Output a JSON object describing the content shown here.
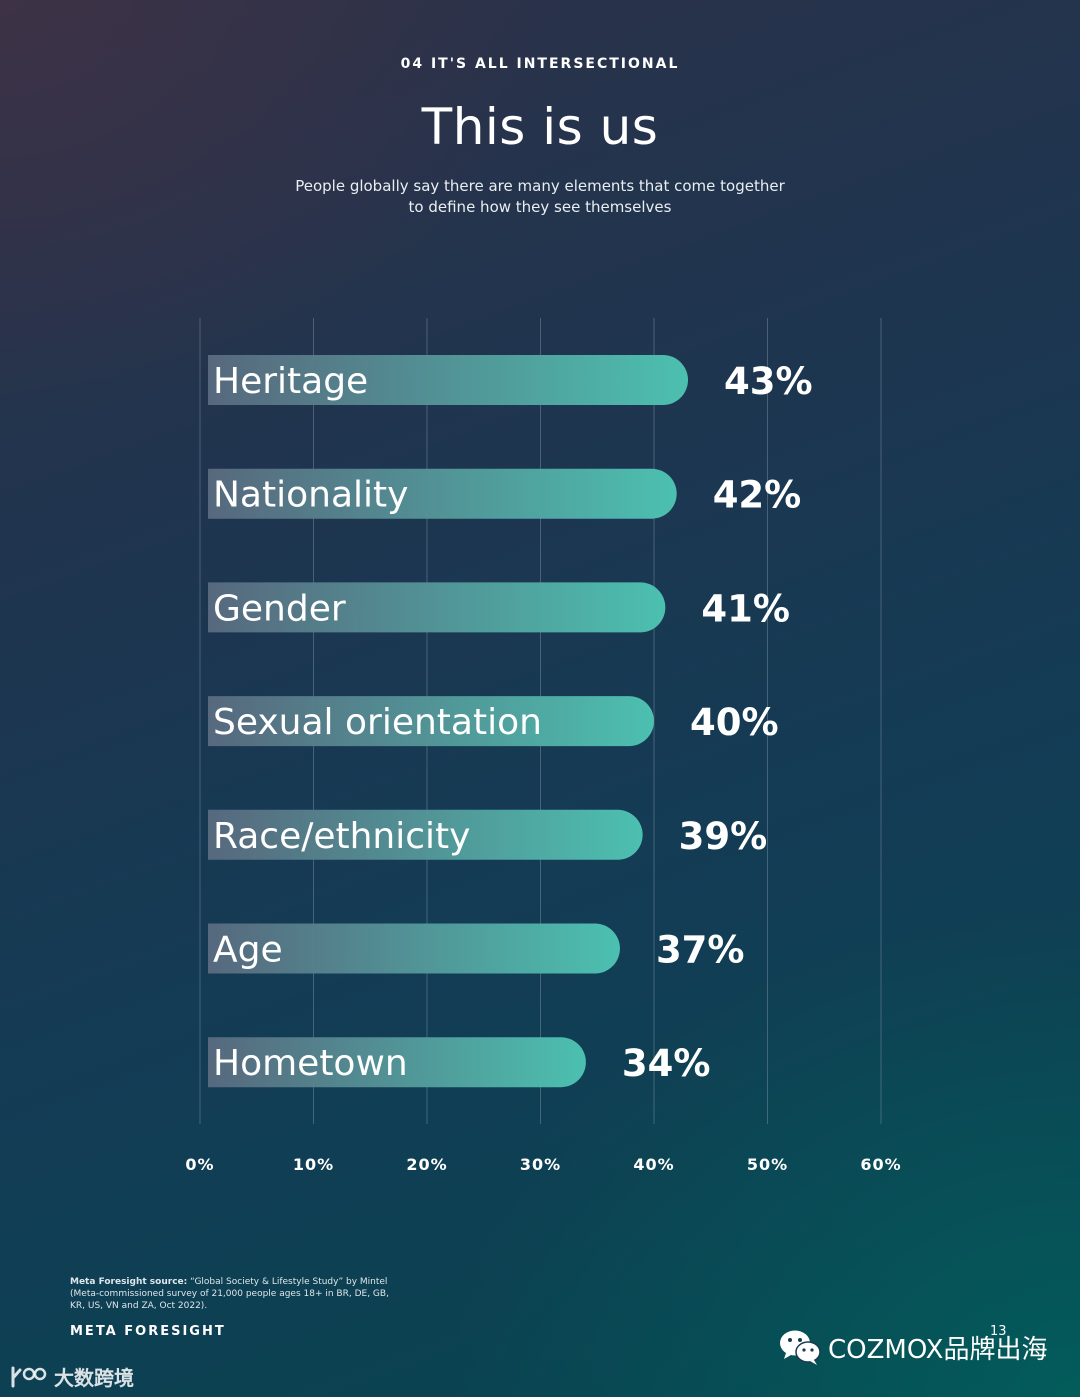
{
  "header": {
    "eyebrow": "04 IT'S ALL INTERSECTIONAL",
    "title": "This is us",
    "subtitle": "People globally say there are many elements that come together to define how they see themselves"
  },
  "chart_data": {
    "type": "bar",
    "orientation": "horizontal",
    "categories": [
      "Heritage",
      "Nationality",
      "Gender",
      "Sexual orientation",
      "Race/ethnicity",
      "Age",
      "Hometown"
    ],
    "values": [
      43,
      42,
      41,
      40,
      39,
      37,
      34
    ],
    "value_labels": [
      "43%",
      "42%",
      "41%",
      "40%",
      "39%",
      "37%",
      "34%"
    ],
    "xlim": [
      0,
      60
    ],
    "x_ticks": [
      "0%",
      "10%",
      "20%",
      "30%",
      "40%",
      "50%",
      "60%"
    ],
    "grid": true,
    "colors": {
      "bar_start": "#5a6b80",
      "bar_end": "#4cc0b0",
      "grid": "#6f8599"
    }
  },
  "footer": {
    "source_label": "Meta Foresight source:",
    "source_text": "“Global Society & Lifestyle Study” by Mintel (Meta-commissioned survey of 21,000 people ages 18+ in BR, DE, GB, KR, US, VN and ZA, Oct 2022).",
    "brand": "META FORESIGHT",
    "page_number": "13"
  },
  "watermarks": {
    "right_text": "COZMOX品牌出海",
    "right_icon": "wechat-icon",
    "left_text": "大数跨境",
    "left_icon": "logo-icon"
  }
}
